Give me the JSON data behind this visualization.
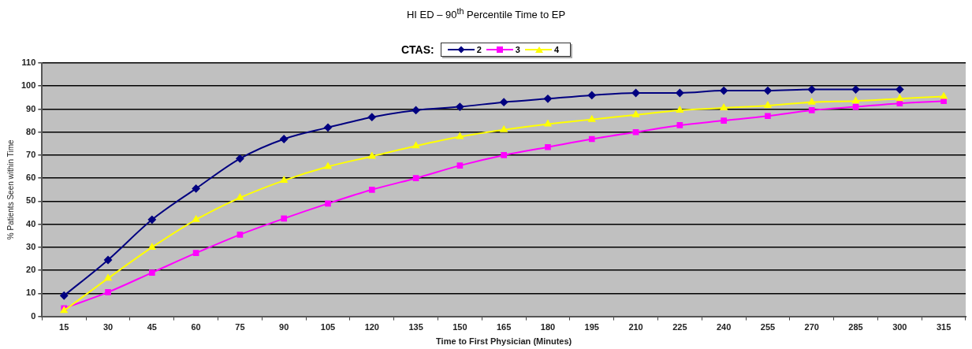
{
  "chart_data": {
    "type": "line",
    "title": "HI ED – 90$^{th}$ Percentile Time to EP",
    "xlabel": "Time to First Physician (Minutes)",
    "ylabel": "% Patients Seen within Time",
    "legend_title": "CTAS:",
    "legend": "top",
    "categories": [
      "15",
      "30",
      "45",
      "60",
      "75",
      "90",
      "105",
      "120",
      "135",
      "150",
      "165",
      "180",
      "195",
      "210",
      "225",
      "240",
      "255",
      "270",
      "285",
      "300",
      "315"
    ],
    "series": [
      {
        "name": "2",
        "color": "#000080",
        "marker": "diamond",
        "values": [
          9,
          24.5,
          42,
          55.5,
          68.5,
          77,
          82,
          86.5,
          89.5,
          91,
          93,
          94.5,
          96,
          97,
          97,
          98,
          98,
          98.5,
          98.5,
          98.5,
          null
        ]
      },
      {
        "name": "3",
        "color": "#ff00ff",
        "marker": "square",
        "values": [
          3.5,
          10.5,
          19,
          27.5,
          35.5,
          42.5,
          49,
          55,
          60,
          65.5,
          70,
          73.5,
          77,
          80,
          83,
          85,
          87,
          89.5,
          91,
          92.5,
          93.5
        ]
      },
      {
        "name": "4",
        "color": "#ffff00",
        "marker": "triangle",
        "values": [
          2.5,
          16.5,
          30,
          42,
          51.5,
          59,
          65,
          69.5,
          74,
          78,
          81,
          83.5,
          85.5,
          87.5,
          89.5,
          90.5,
          91.5,
          93,
          93.5,
          94.5,
          95.5
        ]
      }
    ],
    "ylim": [
      0,
      110
    ],
    "yticks": [
      0,
      10,
      20,
      30,
      40,
      50,
      60,
      70,
      80,
      90,
      100,
      110
    ],
    "grid": "y",
    "line_style": "solid"
  }
}
